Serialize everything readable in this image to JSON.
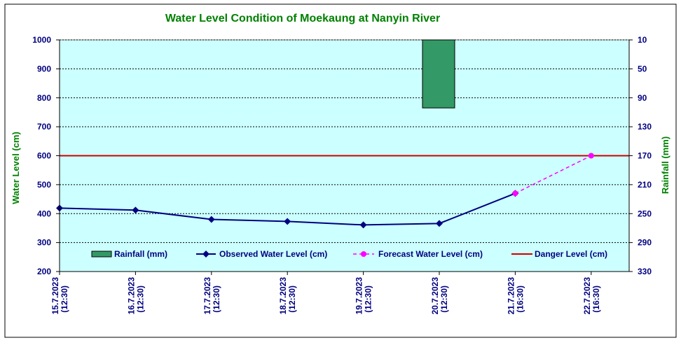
{
  "colors": {
    "plot_bg": "#ccffff",
    "observed": "#000080",
    "forecast": "#ff00ff",
    "danger": "#cc0000",
    "rainfall": "#339966",
    "title": "#008000",
    "ticks": "#000080"
  },
  "chart_data": {
    "type": "line",
    "title": "Water Level Condition  of Moekaung  at Nanyin  River",
    "ylabel": "Water Level (cm)",
    "y2label": "Rainfall (mm)",
    "ylim": [
      200,
      1000
    ],
    "y2lim": [
      10,
      330
    ],
    "y2_inverted": true,
    "yticks": [
      "200",
      "300",
      "400",
      "500",
      "600",
      "700",
      "800",
      "900",
      "1000"
    ],
    "y2ticks": [
      "10",
      "50",
      "90",
      "130",
      "170",
      "210",
      "250",
      "290",
      "330"
    ],
    "categories": [
      [
        "15.7.2023",
        "(12:30)"
      ],
      [
        "16.7.2023",
        "(12:30)"
      ],
      [
        "17.7.2023",
        "(12:30)"
      ],
      [
        "18.7.2023",
        "(12:30)"
      ],
      [
        "19.7.2023",
        "(12:30)"
      ],
      [
        "20.7.2023",
        "(12:30)"
      ],
      [
        "21.7.2023",
        "(16:30)"
      ],
      [
        "22.7.2023",
        "(16:30)"
      ]
    ],
    "series": [
      {
        "name": "Rainfall (mm)",
        "kind": "bar",
        "axis": "right",
        "values": [
          0,
          0,
          0,
          0,
          0,
          94,
          0,
          0
        ]
      },
      {
        "name": "Observed Water Level (cm)",
        "kind": "line",
        "values": [
          419,
          412,
          380,
          373,
          361,
          366,
          470,
          null
        ]
      },
      {
        "name": "Forecast Water Level (cm)",
        "kind": "dashed-line",
        "values": [
          null,
          null,
          null,
          null,
          null,
          null,
          470,
          600
        ]
      },
      {
        "name": "Danger Level (cm)",
        "kind": "line",
        "values": [
          600,
          600,
          600,
          600,
          600,
          600,
          600,
          600
        ]
      }
    ],
    "legend_placement": "bottom",
    "grid": true
  }
}
